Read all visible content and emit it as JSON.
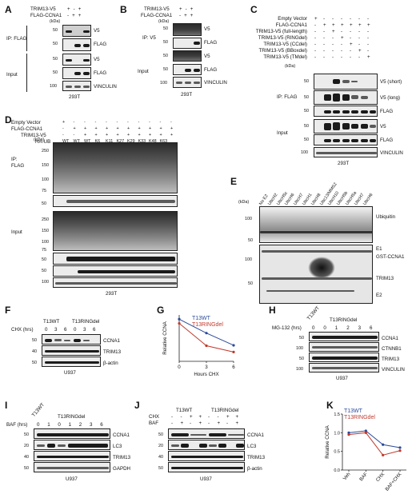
{
  "panels": {
    "A": {
      "letter": "A",
      "rows": [
        {
          "label": "TRIM13-V5",
          "marks": [
            "+",
            "-",
            "+"
          ]
        },
        {
          "label": "FLAG-CCNA1",
          "marks": [
            "-",
            "+",
            "+"
          ]
        }
      ],
      "kda": "(kDa)",
      "ip_label": "IP: FLAG",
      "input_label": "Input",
      "blots": [
        {
          "marker": "50",
          "name": "V5"
        },
        {
          "marker": "50",
          "name": "FLAG"
        },
        {
          "marker": "50",
          "name": "V5"
        },
        {
          "marker": "50",
          "name": "FLAG"
        },
        {
          "marker": "100",
          "name": "VINCULIN"
        }
      ],
      "cell": "293T"
    },
    "B": {
      "letter": "B",
      "rows": [
        {
          "label": "TRIM13-V5",
          "marks": [
            "+",
            "-",
            "+"
          ]
        },
        {
          "label": "FLAG-CCNA1",
          "marks": [
            "-",
            "+",
            "+"
          ]
        }
      ],
      "kda": "(kDa)",
      "ip_label": "IP: V5",
      "input_label": "Input",
      "blots": [
        {
          "marker": "50",
          "name": "V5"
        },
        {
          "marker": "50",
          "name": "FLAG"
        },
        {
          "marker": "50",
          "name": "V5"
        },
        {
          "marker": "50",
          "name": "FLAG"
        },
        {
          "marker": "100",
          "name": "VINCULIN"
        }
      ],
      "cell": "293T"
    },
    "C": {
      "letter": "C",
      "rows": [
        {
          "label": "Empty Vector",
          "marks": [
            "+",
            "-",
            "-",
            "-",
            "-",
            "-",
            "-"
          ]
        },
        {
          "label": "FLAG-CCNA1",
          "marks": [
            "-",
            "+",
            "+",
            "+",
            "+",
            "+",
            "+"
          ]
        },
        {
          "label": "TRIM13-V5 (full-length)",
          "marks": [
            "-",
            "-",
            "+",
            "-",
            "-",
            "-",
            "-"
          ]
        },
        {
          "label": "TRIM13-V5 (RINGdel)",
          "marks": [
            "-",
            "-",
            "-",
            "+",
            "-",
            "-",
            "-"
          ]
        },
        {
          "label": "TRIM13-V5 (CCdel)",
          "marks": [
            "-",
            "-",
            "-",
            "-",
            "+",
            "-",
            "-"
          ]
        },
        {
          "label": "TRIM13-V5 (BBoxdel)",
          "marks": [
            "-",
            "-",
            "-",
            "-",
            "-",
            "+",
            "-"
          ]
        },
        {
          "label": "TRIM13-V5 (TMdel)",
          "marks": [
            "-",
            "-",
            "-",
            "-",
            "-",
            "-",
            "+"
          ]
        }
      ],
      "kda": "(kDa)",
      "ip_label": "IP: FLAG",
      "input_label": "Input",
      "blots": [
        {
          "marker": "50",
          "name": "V5 (short)"
        },
        {
          "marker": "50",
          "name": "V5 (long)"
        },
        {
          "marker": "50",
          "name": "FLAG"
        },
        {
          "marker": "50",
          "name": "V5"
        },
        {
          "marker": "50",
          "name": "FLAG"
        },
        {
          "marker": "100",
          "name": "VINCULIN"
        }
      ],
      "cell": "293T"
    },
    "D": {
      "letter": "D",
      "rows": [
        {
          "label": "Empty Vector",
          "marks": [
            "+",
            "-",
            "-",
            "-",
            "-",
            "-",
            "-",
            "-",
            "-",
            "-",
            "-"
          ]
        },
        {
          "label": "FLAG-CCNA1",
          "marks": [
            "-",
            "+",
            "+",
            "+",
            "+",
            "+",
            "+",
            "+",
            "+",
            "+",
            "+"
          ]
        },
        {
          "label": "TRIM13-V5",
          "marks": [
            "-",
            "-",
            "+",
            "+",
            "+",
            "+",
            "+",
            "+",
            "+",
            "+",
            "+"
          ]
        },
        {
          "label": "HA-UB",
          "marks": [
            "WT",
            "WT",
            "WT",
            "K6",
            "K11",
            "K27",
            "K29",
            "K33",
            "K48",
            "K63",
            ""
          ]
        }
      ],
      "ip_label": "IP:\nFLAG",
      "input_label": "Input",
      "markers": [
        "(kDa)",
        "250",
        "150",
        "100",
        "75",
        "50",
        "250",
        "150",
        "100",
        "75",
        "50",
        "50",
        "100"
      ],
      "blots": [
        "HA",
        "FLAG",
        "HA",
        "FLAG",
        "V5",
        "VINCULIN"
      ],
      "cell": "293T"
    },
    "E": {
      "letter": "E",
      "lanes": [
        "No E2",
        "UbcH2",
        "UbcH5c",
        "UbcH6",
        "UbcH7",
        "UbcH1",
        "UbcH8",
        "Ubc13/MMS2",
        "UbcH10",
        "UbcH5b",
        "UbcH5a",
        "UbcH7",
        "UbcH6"
      ],
      "kda": "(kDa)",
      "markers": [
        "100",
        "50",
        "100",
        "50"
      ],
      "bands": [
        "Ubiquitin",
        "E1",
        "GST-CCNA1",
        "TRIM13",
        "E2"
      ]
    },
    "F": {
      "letter": "F",
      "groups": [
        "T13WT",
        "T13RINGdel"
      ],
      "treatment": "CHX (hrs)",
      "times": [
        "0",
        "3",
        "6",
        "0",
        "3",
        "6"
      ],
      "markers": [
        "50",
        "40",
        "50"
      ],
      "blots": [
        "CCNA1",
        "TRIM13",
        "β-actin"
      ],
      "cell": "U937"
    },
    "H": {
      "letter": "H",
      "groups": [
        "T13WT",
        "T13RINGdel"
      ],
      "treatment": "MG-132 (hrs)",
      "times": [
        "0",
        "0",
        "1",
        "2",
        "3",
        "6"
      ],
      "markers": [
        "50",
        "100",
        "50",
        "100"
      ],
      "blots": [
        "CCNA1",
        "CTNNB1",
        "TRIM13",
        "VINCULIN"
      ],
      "cell": "U937"
    },
    "I": {
      "letter": "I",
      "groups": [
        "T13WT",
        "T13RINGdel"
      ],
      "treatment": "BAF (hrs)",
      "times": [
        "0",
        "1",
        "0",
        "1",
        "2",
        "3",
        "6"
      ],
      "markers": [
        "50",
        "20",
        "40",
        "50"
      ],
      "blots": [
        "CCNA1",
        "LC3",
        "TRIM13",
        "GAPDH"
      ],
      "cell": "U937"
    },
    "J": {
      "letter": "J",
      "groups": [
        "T13WT",
        "T13RINGdel"
      ],
      "rows": [
        {
          "label": "CHX",
          "marks": [
            "-",
            "-",
            "+",
            "+",
            "-",
            "-",
            "+",
            "+"
          ]
        },
        {
          "label": "BAF",
          "marks": [
            "-",
            "+",
            "-",
            "+",
            "-",
            "+",
            "-",
            "+"
          ]
        }
      ],
      "markers": [
        "50",
        "20",
        "40",
        "50"
      ],
      "blots": [
        "CCNA1",
        "LC3",
        "TRIM13",
        "β-actin"
      ],
      "cell": "U937"
    }
  },
  "chart_data": [
    {
      "panel": "G",
      "type": "line",
      "title": "",
      "xlabel": "Hours CHX",
      "ylabel": "Relative CCNA",
      "x": [
        0,
        3,
        6
      ],
      "xticks": [
        "0",
        "3",
        "6"
      ],
      "ylim": [
        0,
        1.1
      ],
      "series": [
        {
          "name": "T13WT",
          "color": "#2b4a9a",
          "values": [
            1.0,
            0.67,
            0.38
          ]
        },
        {
          "name": "T13RINGdel",
          "color": "#c0392b",
          "values": [
            0.9,
            0.37,
            0.22
          ]
        }
      ]
    },
    {
      "panel": "K",
      "type": "line",
      "title": "",
      "xlabel": "",
      "ylabel": "Relative CCNA",
      "categories": [
        "Veh",
        "BAF",
        "CHX",
        "BAF+CHX"
      ],
      "ylim": [
        0,
        1.5
      ],
      "yticks": [
        "0.0",
        "0.5",
        "1.0",
        "1.5"
      ],
      "series": [
        {
          "name": "T13WT",
          "color": "#2b4a9a",
          "values": [
            1.0,
            1.05,
            0.68,
            0.6
          ]
        },
        {
          "name": "T13RINGdel",
          "color": "#c0392b",
          "values": [
            0.95,
            1.0,
            0.4,
            0.52
          ]
        }
      ]
    }
  ]
}
